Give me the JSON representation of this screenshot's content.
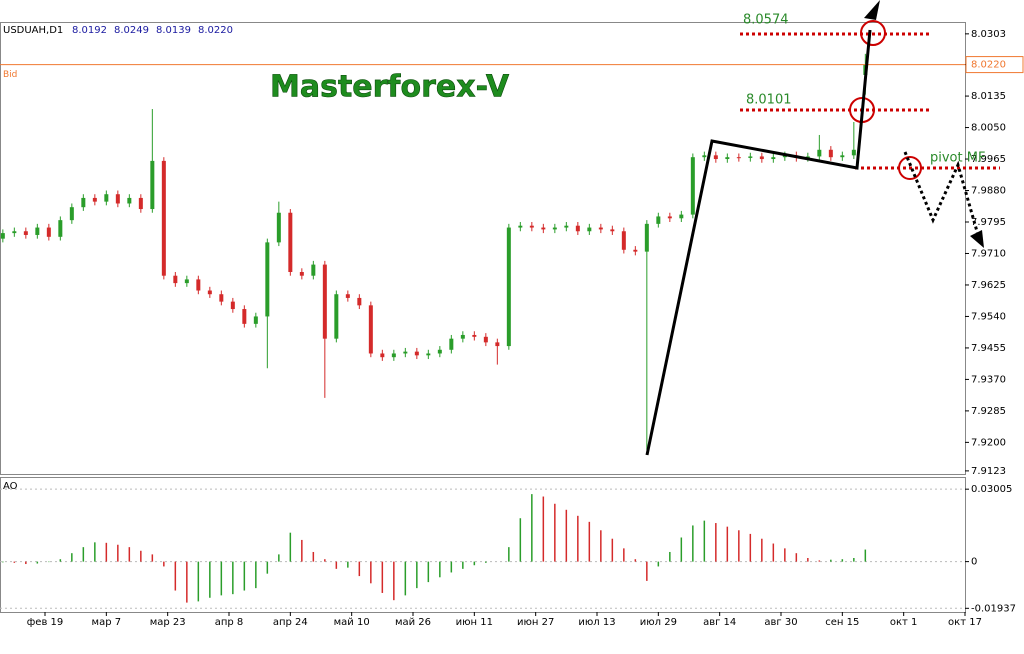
{
  "chart_data": [
    {
      "type": "candlestick",
      "symbol": "USDUAH,D1",
      "header_values": [
        "8.0192",
        "8.0249",
        "8.0139",
        "8.0220"
      ],
      "watermark": "Masterforex-V",
      "labels": [
        "8.0574",
        "8.0101",
        "pivot MF"
      ],
      "bid_label": "Bid",
      "bid": {
        "value": 8.022,
        "label": "8.0220"
      },
      "up_color": "#2a9d2a",
      "down_color": "#d42a2a",
      "bid_color": "#f07830",
      "xlim": [
        -11.74,
        240
      ],
      "ylim": [
        7.912,
        8.0335
      ],
      "yticks": [
        8.0303,
        {
          "value": 8.022,
          "label": "8.0220"
        },
        8.0135,
        {
          "value": 8.005,
          "label": "8.0050"
        },
        7.9965,
        {
          "value": 7.988,
          "label": "7.9880"
        },
        7.9795,
        {
          "value": 7.971,
          "label": "7.9710"
        },
        7.9625,
        {
          "value": 7.954,
          "label": "7.9540"
        },
        7.9455,
        {
          "value": 7.937,
          "label": "7.9370"
        },
        7.9285,
        {
          "value": 7.92,
          "label": "7.9200"
        },
        7.9123
      ],
      "x": [
        -11,
        -8,
        -5,
        -2,
        1,
        4,
        7,
        10,
        13,
        16,
        19,
        22,
        25,
        28,
        31,
        34,
        37,
        40,
        43,
        46,
        49,
        52,
        55,
        58,
        61,
        64,
        67,
        70,
        73,
        76,
        79,
        82,
        85,
        88,
        91,
        94,
        97,
        100,
        103,
        106,
        109,
        112,
        115,
        118,
        121,
        124,
        127,
        130,
        133,
        136,
        139,
        142,
        145,
        148,
        151,
        154,
        157,
        160,
        163,
        166,
        169,
        172,
        175,
        178,
        181,
        184,
        187,
        190,
        193,
        196,
        199,
        202,
        205,
        208,
        211,
        214
      ],
      "open": [
        7.975,
        7.9765,
        7.977,
        7.976,
        7.978,
        7.9755,
        7.98,
        7.9835,
        7.986,
        7.985,
        7.987,
        7.9845,
        7.986,
        7.983,
        7.996,
        7.965,
        7.963,
        7.964,
        7.961,
        7.96,
        7.958,
        7.956,
        7.952,
        7.954,
        7.974,
        7.982,
        7.966,
        7.965,
        7.968,
        7.948,
        7.96,
        7.959,
        7.957,
        7.944,
        7.943,
        7.944,
        7.9445,
        7.9435,
        7.944,
        7.945,
        7.948,
        7.949,
        7.9485,
        7.947,
        7.946,
        7.978,
        7.9785,
        7.978,
        7.9775,
        7.978,
        7.9785,
        7.977,
        7.978,
        7.9775,
        7.977,
        7.972,
        7.9715,
        7.979,
        7.981,
        7.9805,
        7.9815,
        7.997,
        7.9975,
        7.9965,
        7.997,
        7.9968,
        7.9972,
        7.9965,
        7.997,
        7.9975,
        7.9968,
        7.9972,
        7.999,
        7.997,
        7.9975,
        8.0192
      ],
      "high": [
        7.9775,
        7.978,
        7.978,
        7.979,
        7.979,
        7.981,
        7.9845,
        7.987,
        7.987,
        7.988,
        7.988,
        7.987,
        7.987,
        8.01,
        7.997,
        7.966,
        7.965,
        7.965,
        7.962,
        7.961,
        7.959,
        7.957,
        7.955,
        7.975,
        7.985,
        7.983,
        7.967,
        7.969,
        7.969,
        7.961,
        7.961,
        7.96,
        7.958,
        7.945,
        7.945,
        7.9455,
        7.9455,
        7.945,
        7.946,
        7.949,
        7.95,
        7.95,
        7.9495,
        7.948,
        7.979,
        7.9795,
        7.9795,
        7.979,
        7.979,
        7.9795,
        7.9795,
        7.979,
        7.979,
        7.9785,
        7.978,
        7.973,
        7.98,
        7.982,
        7.982,
        7.9825,
        7.998,
        7.9985,
        7.9985,
        7.998,
        7.998,
        7.9982,
        7.9982,
        7.998,
        7.9985,
        7.9985,
        7.9982,
        8.003,
        8.0,
        7.9985,
        8.0065,
        8.0249
      ],
      "low": [
        7.974,
        7.9755,
        7.975,
        7.975,
        7.9745,
        7.9745,
        7.979,
        7.9825,
        7.984,
        7.984,
        7.9835,
        7.9835,
        7.982,
        7.982,
        7.964,
        7.962,
        7.962,
        7.96,
        7.959,
        7.957,
        7.955,
        7.951,
        7.951,
        7.94,
        7.973,
        7.965,
        7.964,
        7.964,
        7.932,
        7.947,
        7.958,
        7.956,
        7.943,
        7.942,
        7.942,
        7.943,
        7.9425,
        7.9425,
        7.943,
        7.944,
        7.947,
        7.9475,
        7.946,
        7.941,
        7.945,
        7.977,
        7.977,
        7.9765,
        7.9765,
        7.977,
        7.976,
        7.976,
        7.9765,
        7.976,
        7.971,
        7.9705,
        7.918,
        7.978,
        7.9795,
        7.9795,
        7.9805,
        7.996,
        7.9955,
        7.9955,
        7.9958,
        7.9958,
        7.9955,
        7.9955,
        7.996,
        7.9958,
        7.9958,
        7.9962,
        7.996,
        7.996,
        7.9965,
        8.0139
      ],
      "close": [
        7.9765,
        7.977,
        7.976,
        7.978,
        7.9755,
        7.98,
        7.9835,
        7.986,
        7.985,
        7.987,
        7.9845,
        7.986,
        7.983,
        7.996,
        7.965,
        7.963,
        7.964,
        7.961,
        7.96,
        7.958,
        7.956,
        7.952,
        7.954,
        7.974,
        7.982,
        7.966,
        7.965,
        7.968,
        7.948,
        7.96,
        7.959,
        7.957,
        7.944,
        7.943,
        7.944,
        7.9445,
        7.9435,
        7.944,
        7.945,
        7.948,
        7.949,
        7.9485,
        7.947,
        7.946,
        7.978,
        7.9785,
        7.978,
        7.9775,
        7.978,
        7.9785,
        7.977,
        7.978,
        7.9775,
        7.977,
        7.972,
        7.9715,
        7.979,
        7.981,
        7.9805,
        7.9815,
        7.997,
        7.9975,
        7.9965,
        7.997,
        7.9968,
        7.9972,
        7.9965,
        7.997,
        7.9975,
        7.9968,
        7.9972,
        7.999,
        7.997,
        7.9975,
        7.999,
        8.022
      ]
    },
    {
      "type": "histogram-oscillator",
      "title": "AO",
      "up_color": "#2a9d2a",
      "down_color": "#d42a2a",
      "xlim": [
        -11.74,
        240
      ],
      "ylim": [
        -0.0209,
        0.0351
      ],
      "yticks": [
        0.03005,
        0,
        -0.01937
      ],
      "xticks": [
        {
          "value": 0,
          "label": "фев 19"
        },
        {
          "value": 16,
          "label": "мар 7"
        },
        {
          "value": 32,
          "label": "мар 23"
        },
        {
          "value": 48,
          "label": "апр 8"
        },
        {
          "value": 64,
          "label": "апр 24"
        },
        {
          "value": 80,
          "label": "май 10"
        },
        {
          "value": 96,
          "label": "май 26"
        },
        {
          "value": 112,
          "label": "июн 11"
        },
        {
          "value": 128,
          "label": "июн 27"
        },
        {
          "value": 144,
          "label": "июл 13"
        },
        {
          "value": 160,
          "label": "июл 29"
        },
        {
          "value": 176,
          "label": "авг 14"
        },
        {
          "value": 192,
          "label": "авг 30"
        },
        {
          "value": 208,
          "label": "сен 15"
        },
        {
          "value": 224,
          "label": "окт 1"
        },
        {
          "value": 240,
          "label": "окт 17"
        }
      ],
      "x": [
        -11,
        -8,
        -5,
        -2,
        1,
        4,
        7,
        10,
        13,
        16,
        19,
        22,
        25,
        28,
        31,
        34,
        37,
        40,
        43,
        46,
        49,
        52,
        55,
        58,
        61,
        64,
        67,
        70,
        73,
        76,
        79,
        82,
        85,
        88,
        91,
        94,
        97,
        100,
        103,
        106,
        109,
        112,
        115,
        118,
        121,
        124,
        127,
        130,
        133,
        136,
        139,
        142,
        145,
        148,
        151,
        154,
        157,
        160,
        163,
        166,
        169,
        172,
        175,
        178,
        181,
        184,
        187,
        190,
        193,
        196,
        199,
        202,
        205,
        208,
        211,
        214
      ],
      "values": [
        -0.0003,
        -0.0005,
        -0.001,
        -0.0008,
        -0.0002,
        0.001,
        0.0035,
        0.006,
        0.008,
        0.0078,
        0.007,
        0.006,
        0.0045,
        0.003,
        -0.002,
        -0.012,
        -0.017,
        -0.0165,
        -0.015,
        -0.014,
        -0.0135,
        -0.012,
        -0.011,
        -0.005,
        0.003,
        0.012,
        0.009,
        0.004,
        0.001,
        -0.003,
        -0.0025,
        -0.006,
        -0.009,
        -0.013,
        -0.016,
        -0.014,
        -0.011,
        -0.0085,
        -0.0065,
        -0.0045,
        -0.003,
        -0.0015,
        -0.0005,
        0,
        0.006,
        0.018,
        0.028,
        0.027,
        0.024,
        0.0215,
        0.019,
        0.0165,
        0.013,
        0.0095,
        0.0055,
        0.001,
        -0.008,
        -0.002,
        0.004,
        0.01,
        0.015,
        0.017,
        0.016,
        0.0145,
        0.013,
        0.0115,
        0.0095,
        0.0075,
        0.0055,
        0.0035,
        0.0015,
        0.0005,
        0.0008,
        0.001,
        0.0015,
        0.005
      ]
    }
  ]
}
